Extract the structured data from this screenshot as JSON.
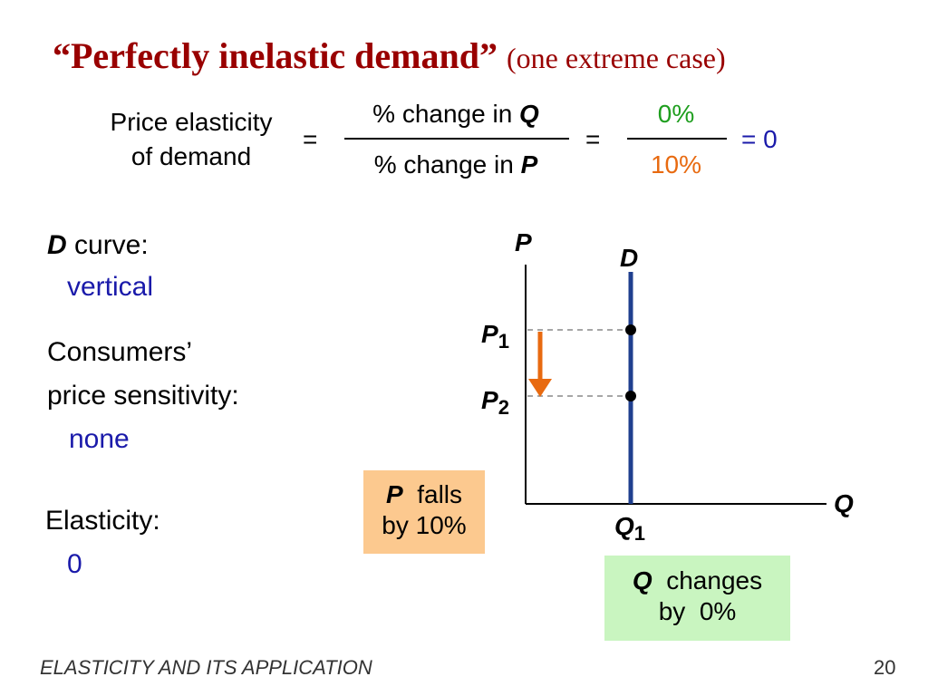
{
  "title": {
    "main": "“Perfectly inelastic demand”",
    "sub": "(one extreme case)"
  },
  "formula": {
    "lhs_line1": "Price elasticity",
    "lhs_line2": "of demand",
    "eq": "=",
    "num_prefix": "% change in ",
    "num_var": "Q",
    "den_prefix": "% change in ",
    "den_var": "P",
    "val_num": "0%",
    "val_den": "10%",
    "result": "= 0"
  },
  "left": {
    "d_curve_var": "D",
    "d_curve_label": " curve:",
    "d_curve_value": "vertical",
    "sens_line1": "Consumers’",
    "sens_line2": "price sensitivity:",
    "sens_value": "none",
    "elast_label": "Elasticity:",
    "elast_value": "0"
  },
  "graph": {
    "y_axis": "P",
    "x_axis": "Q",
    "curve": "D",
    "p1": "P",
    "p1_sub": "1",
    "p2": "P",
    "p2_sub": "2",
    "q1": "Q",
    "q1_sub": "1"
  },
  "boxes": {
    "p_falls_var": "P",
    "p_falls_line1": "  falls",
    "p_falls_line2": "by 10%",
    "q_changes_var": "Q",
    "q_changes_line1": "  changes",
    "q_changes_line2": "by  0%"
  },
  "colors": {
    "title": "#990000",
    "blue": "#1a1aaa",
    "green": "#1e9e1e",
    "orange": "#e86a10",
    "curve": "#1f3f8f",
    "box_orange": "#fcc98f",
    "box_green": "#c9f5c0"
  },
  "footer": {
    "text": "ELASTICITY AND ITS APPLICATION",
    "page": "20"
  }
}
